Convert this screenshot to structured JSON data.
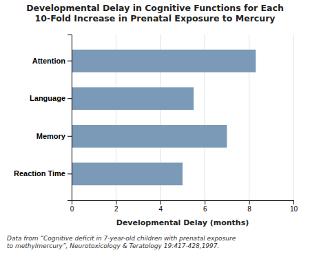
{
  "chart_data": {
    "type": "bar",
    "orientation": "horizontal",
    "title": "Developmental Delay in Cognitive Functions for Each\n10-Fold Increase in Prenatal Exposure to Mercury",
    "categories": [
      "Reaction Time",
      "Memory",
      "Language",
      "Attention"
    ],
    "values": [
      5.0,
      7.0,
      5.5,
      8.3
    ],
    "color": "#7a9ab8",
    "x_label": "Developmental Delay (months)",
    "xlim": [
      0,
      10
    ],
    "xticks": [
      0,
      2,
      4,
      6,
      8,
      10
    ],
    "grid": true,
    "footer": "Data from “Cognitive deficit in 7-year-old children with prenatal exposure\nto methylmercury”, Neurotoxicology & Teratology 19:417-428,1997."
  }
}
